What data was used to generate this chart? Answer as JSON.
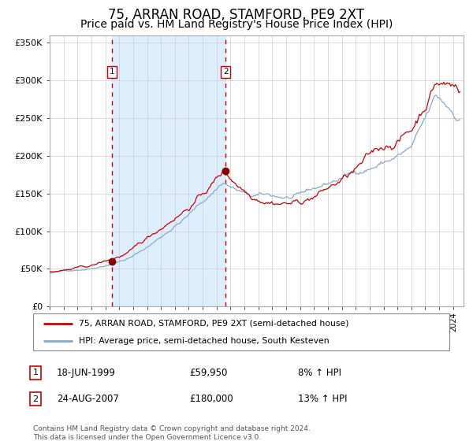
{
  "title": "75, ARRAN ROAD, STAMFORD, PE9 2XT",
  "subtitle": "Price paid vs. HM Land Registry's House Price Index (HPI)",
  "title_fontsize": 12,
  "subtitle_fontsize": 10,
  "plot_bg_color": "#ffffff",
  "grid_color": "#cccccc",
  "line1_color": "#cc0000",
  "line2_color": "#88aacc",
  "marker_color": "#880000",
  "vline_color": "#cc0000",
  "vline_style": "--",
  "shaded_region_color": "#ddeeff",
  "ylim": [
    0,
    360000
  ],
  "yticks": [
    0,
    50000,
    100000,
    150000,
    200000,
    250000,
    300000,
    350000
  ],
  "ytick_labels": [
    "£0",
    "£50K",
    "£100K",
    "£150K",
    "£200K",
    "£250K",
    "£300K",
    "£350K"
  ],
  "year_start": 1995,
  "year_end": 2024,
  "sale1_year": 1999.46,
  "sale1_price": 59950,
  "sale2_year": 2007.65,
  "sale2_price": 180000,
  "legend_label1": "75, ARRAN ROAD, STAMFORD, PE9 2XT (semi-detached house)",
  "legend_label2": "HPI: Average price, semi-detached house, South Kesteven",
  "note1_num": "1",
  "note1_date": "18-JUN-1999",
  "note1_price": "£59,950",
  "note1_hpi": "8% ↑ HPI",
  "note2_num": "2",
  "note2_date": "24-AUG-2007",
  "note2_price": "£180,000",
  "note2_hpi": "13% ↑ HPI",
  "footer": "Contains HM Land Registry data © Crown copyright and database right 2024.\nThis data is licensed under the Open Government Licence v3.0."
}
